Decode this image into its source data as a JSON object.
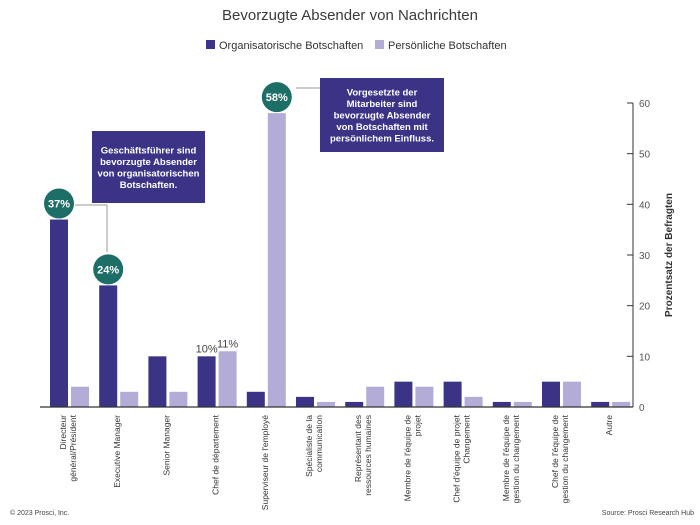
{
  "chart_data": {
    "type": "bar",
    "title": "Bevorzugte Absender von Nachrichten",
    "ylabel": "Prozentsatz der Befragten",
    "xlabel": "",
    "ylim": [
      0,
      60
    ],
    "yticks": [
      0,
      10,
      20,
      30,
      40,
      50,
      60
    ],
    "axis_position": "right",
    "legend_position": "top-center",
    "grid": false,
    "categories": [
      [
        "Directeur",
        "général/Président"
      ],
      [
        "Executive Manager"
      ],
      [
        "Senior Manager"
      ],
      [
        "Chef de département"
      ],
      [
        "Superviseur de l'employé"
      ],
      [
        "Spécialiste de la",
        "communication"
      ],
      [
        "Représentant des",
        "ressources humaines"
      ],
      [
        "Membre de l'équipe de",
        "projet"
      ],
      [
        "Chef d'équipe de projet",
        "Changement"
      ],
      [
        "Membre de l'équipe de",
        "gestion du changement"
      ],
      [
        "Chef de l'équipe de",
        "gestion du changement"
      ],
      [
        "Autre"
      ]
    ],
    "series": [
      {
        "name": "Organisatorische Botschaften",
        "color": "#3b3386",
        "values": [
          37,
          24,
          10,
          10,
          3,
          2,
          1,
          5,
          5,
          1,
          5,
          1
        ]
      },
      {
        "name": "Persönliche Botschaften",
        "color": "#b3acd6",
        "values": [
          4,
          3,
          3,
          11,
          58,
          1,
          4,
          4,
          2,
          1,
          5,
          1
        ]
      }
    ],
    "data_labels": [
      {
        "series": 0,
        "category": 0,
        "text": "37%",
        "style": "badge"
      },
      {
        "series": 0,
        "category": 1,
        "text": "24%",
        "style": "badge"
      },
      {
        "series": 1,
        "category": 4,
        "text": "58%",
        "style": "badge"
      },
      {
        "series": 0,
        "category": 3,
        "text": "10%",
        "style": "plain"
      },
      {
        "series": 1,
        "category": 3,
        "text": "11%",
        "style": "plain"
      }
    ],
    "annotations": [
      {
        "target_series": 0,
        "target_category": 0,
        "lines": [
          "Geschäftsführer sind",
          "bevorzugte Absender",
          "von organisatorischen",
          "Botschaften."
        ]
      },
      {
        "target_series": 1,
        "target_category": 4,
        "lines": [
          "Vorgesetzte der",
          "Mitarbeiter sind",
          "bevorzugte Absender",
          "von Botschaften mit",
          "persönlichem Einfluss."
        ]
      }
    ]
  },
  "footer": {
    "copyright": "© 2023 Prosci, Inc.",
    "source": "Source: Prosci Research Hub"
  },
  "colors": {
    "badge": "#1e6e68",
    "callout": "#3b3386",
    "axis": "#333333"
  }
}
